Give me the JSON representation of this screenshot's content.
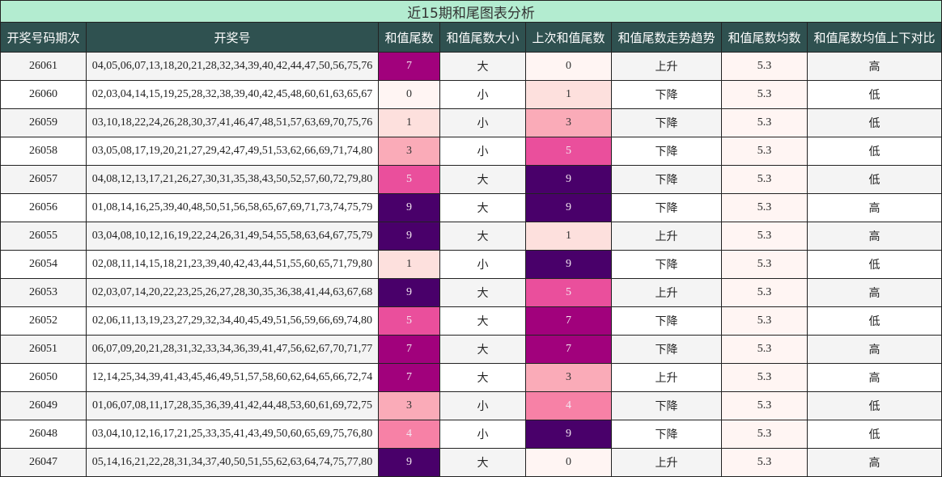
{
  "title": "近15期和尾图表分析",
  "headers": [
    "开奖号码期次",
    "开奖号",
    "和值尾数",
    "和值尾数大小",
    "上次和值尾数",
    "和值尾数走势趋势",
    "和值尾数均数",
    "和值尾数均值上下对比"
  ],
  "colors": {
    "0": "#fff5f3",
    "1": "#fde0dd",
    "3": "#faabb8",
    "4": "#f781a6",
    "5": "#ea4f9c",
    "7": "#a1017c",
    "9": "#49006a"
  },
  "rows": [
    [
      "26061",
      "04,05,06,07,13,18,20,21,28,32,34,39,40,42,44,47,50,56,75,76",
      "7",
      "大",
      "0",
      "上升",
      "5.3",
      "高"
    ],
    [
      "26060",
      "02,03,04,14,15,19,25,28,32,38,39,40,42,45,48,60,61,63,65,67",
      "0",
      "小",
      "1",
      "下降",
      "5.3",
      "低"
    ],
    [
      "26059",
      "03,10,18,22,24,26,28,30,37,41,46,47,48,51,57,63,69,70,75,76",
      "1",
      "小",
      "3",
      "下降",
      "5.3",
      "低"
    ],
    [
      "26058",
      "03,05,08,17,19,20,21,27,29,42,47,49,51,53,62,66,69,71,74,80",
      "3",
      "小",
      "5",
      "下降",
      "5.3",
      "低"
    ],
    [
      "26057",
      "04,08,12,13,17,21,26,27,30,31,35,38,43,50,52,57,60,72,79,80",
      "5",
      "大",
      "9",
      "下降",
      "5.3",
      "低"
    ],
    [
      "26056",
      "01,08,14,16,25,39,40,48,50,51,56,58,65,67,69,71,73,74,75,79",
      "9",
      "大",
      "9",
      "下降",
      "5.3",
      "高"
    ],
    [
      "26055",
      "03,04,08,10,12,16,19,22,24,26,31,49,54,55,58,63,64,67,75,79",
      "9",
      "大",
      "1",
      "上升",
      "5.3",
      "高"
    ],
    [
      "26054",
      "02,08,11,14,15,18,21,23,39,40,42,43,44,51,55,60,65,71,79,80",
      "1",
      "小",
      "9",
      "下降",
      "5.3",
      "低"
    ],
    [
      "26053",
      "02,03,07,14,20,22,23,25,26,27,28,30,35,36,38,41,44,63,67,68",
      "9",
      "大",
      "5",
      "上升",
      "5.3",
      "高"
    ],
    [
      "26052",
      "02,06,11,13,19,23,27,29,32,34,40,45,49,51,56,59,66,69,74,80",
      "5",
      "大",
      "7",
      "下降",
      "5.3",
      "低"
    ],
    [
      "26051",
      "06,07,09,20,21,28,31,32,33,34,36,39,41,47,56,62,67,70,71,77",
      "7",
      "大",
      "7",
      "下降",
      "5.3",
      "高"
    ],
    [
      "26050",
      "12,14,25,34,39,41,43,45,46,49,51,57,58,60,62,64,65,66,72,74",
      "7",
      "大",
      "3",
      "上升",
      "5.3",
      "高"
    ],
    [
      "26049",
      "01,06,07,08,11,17,28,35,36,39,41,42,44,48,53,60,61,69,72,75",
      "3",
      "小",
      "4",
      "下降",
      "5.3",
      "低"
    ],
    [
      "26048",
      "03,04,10,12,16,17,21,25,33,35,41,43,49,50,60,65,69,75,76,80",
      "4",
      "小",
      "9",
      "下降",
      "5.3",
      "低"
    ],
    [
      "26047",
      "05,14,16,21,22,28,31,34,37,40,50,51,55,62,63,64,74,75,77,80",
      "9",
      "大",
      "0",
      "上升",
      "5.3",
      "高"
    ]
  ]
}
